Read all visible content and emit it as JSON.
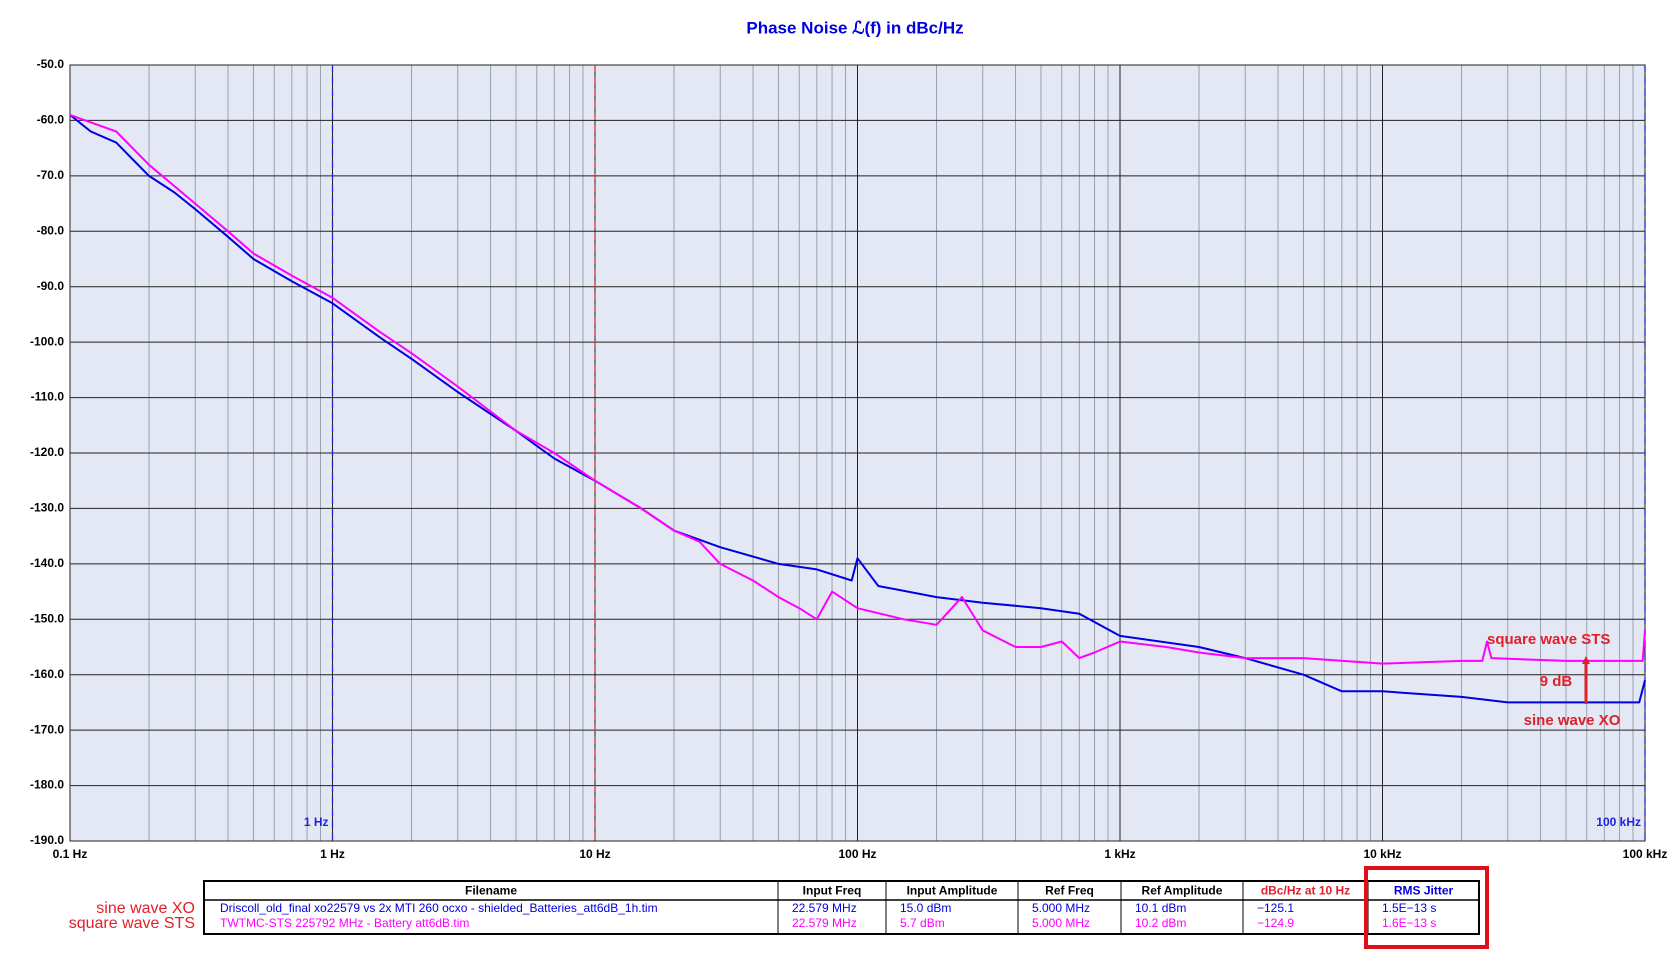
{
  "chart_data": {
    "type": "line",
    "title": "Phase Noise ℒ(f) in dBc/Hz",
    "x_log": true,
    "grid": true,
    "background": "#e4e8f4",
    "xlim": [
      0.1,
      100000
    ],
    "xticks": [
      {
        "value": 0.1,
        "label": "0.1 Hz"
      },
      {
        "value": 1,
        "label": "1 Hz"
      },
      {
        "value": 10,
        "label": "10 Hz"
      },
      {
        "value": 100,
        "label": "100 Hz"
      },
      {
        "value": 1000,
        "label": "1 kHz"
      },
      {
        "value": 10000,
        "label": "10 kHz"
      },
      {
        "value": 100000,
        "label": "100 kHz"
      }
    ],
    "ylim": [
      -190,
      -50
    ],
    "yticks": [
      {
        "value": -190,
        "label": "-190.0"
      },
      {
        "value": -180,
        "label": "-180.0"
      },
      {
        "value": -170,
        "label": "-170.0"
      },
      {
        "value": -160,
        "label": "-160.0"
      },
      {
        "value": -150,
        "label": "-150.0"
      },
      {
        "value": -140,
        "label": "-140.0"
      },
      {
        "value": -130,
        "label": "-130.0"
      },
      {
        "value": -120,
        "label": "-120.0"
      },
      {
        "value": -110,
        "label": "-110.0"
      },
      {
        "value": -100,
        "label": "-100.0"
      },
      {
        "value": -90,
        "label": "-90.0"
      },
      {
        "value": -80,
        "label": "-80.0"
      },
      {
        "value": -70,
        "label": "-70.0"
      },
      {
        "value": -60,
        "label": "-60.0"
      },
      {
        "value": -50,
        "label": "-50.0"
      }
    ],
    "markers": [
      {
        "x": 1,
        "label": "1 Hz",
        "color": "#2020e0"
      },
      {
        "x": 10,
        "color": "#e03030"
      },
      {
        "x": 100000,
        "label": "100 kHz",
        "color": "#2020e0"
      }
    ],
    "series": [
      {
        "name": "sine wave XO",
        "color": "#0000e0",
        "x": [
          0.1,
          0.12,
          0.15,
          0.2,
          0.25,
          0.3,
          0.4,
          0.5,
          0.7,
          1,
          1.5,
          2,
          3,
          5,
          7,
          10,
          15,
          20,
          30,
          50,
          70,
          95,
          100,
          120,
          200,
          300,
          500,
          700,
          1000,
          2000,
          3000,
          5000,
          7000,
          10000,
          20000,
          30000,
          50000,
          70000,
          95000,
          100000
        ],
        "values": [
          -59,
          -62,
          -64,
          -70,
          -73,
          -76,
          -81,
          -85,
          -89,
          -93,
          -99,
          -103,
          -109,
          -116,
          -121,
          -125,
          -130,
          -134,
          -137,
          -140,
          -141,
          -143,
          -139,
          -144,
          -146,
          -147,
          -148,
          -149,
          -153,
          -155,
          -157,
          -160,
          -163,
          -163,
          -164,
          -165,
          -165,
          -165,
          -165,
          -161
        ]
      },
      {
        "name": "square wave STS",
        "color": "#ff00ff",
        "x": [
          0.1,
          0.15,
          0.2,
          0.3,
          0.4,
          0.5,
          0.7,
          1,
          1.5,
          2,
          3,
          5,
          7,
          10,
          15,
          20,
          25,
          30,
          40,
          50,
          60,
          70,
          80,
          100,
          150,
          200,
          250,
          300,
          400,
          500,
          600,
          700,
          800,
          1000,
          1500,
          2000,
          3000,
          5000,
          10000,
          20000,
          24000,
          25000,
          26000,
          50000,
          98000,
          100000
        ],
        "values": [
          -59,
          -62,
          -68,
          -75,
          -80,
          -84,
          -88,
          -92,
          -98,
          -102,
          -108,
          -116,
          -120,
          -125,
          -130,
          -134,
          -136,
          -140,
          -143,
          -146,
          -148,
          -150,
          -145,
          -148,
          -150,
          -151,
          -146,
          -152,
          -155,
          -155,
          -154,
          -157,
          -156,
          -154,
          -155,
          -156,
          -157,
          -157,
          -158,
          -157.5,
          -157.5,
          -154,
          -157,
          -157.5,
          -157.5,
          -152
        ]
      }
    ],
    "annotations": [
      "square wave STS",
      "9 dB",
      "sine wave XO"
    ]
  },
  "table": {
    "columns": [
      "Filename",
      "Input Freq",
      "Input Amplitude",
      "Ref Freq",
      "Ref Amplitude",
      "dBc/Hz at 10 Hz",
      "RMS Jitter"
    ],
    "rows": [
      [
        "Driscoll_old_final  xo22579 vs 2x  MTI  260  ocxo  - shielded_Batteries_att6dB_1h.tim",
        "22.579 MHz",
        "15.0 dBm",
        "5.000 MHz",
        "10.1 dBm",
        "−125.1",
        "1.5E−13 s"
      ],
      [
        "TWTMC-STS 225792 MHz - Battery att6dB.tim",
        "22.579 MHz",
        "5.7 dBm",
        "5.000 MHz",
        "10.2 dBm",
        "−124.9",
        "1.6E−13 s"
      ]
    ]
  }
}
